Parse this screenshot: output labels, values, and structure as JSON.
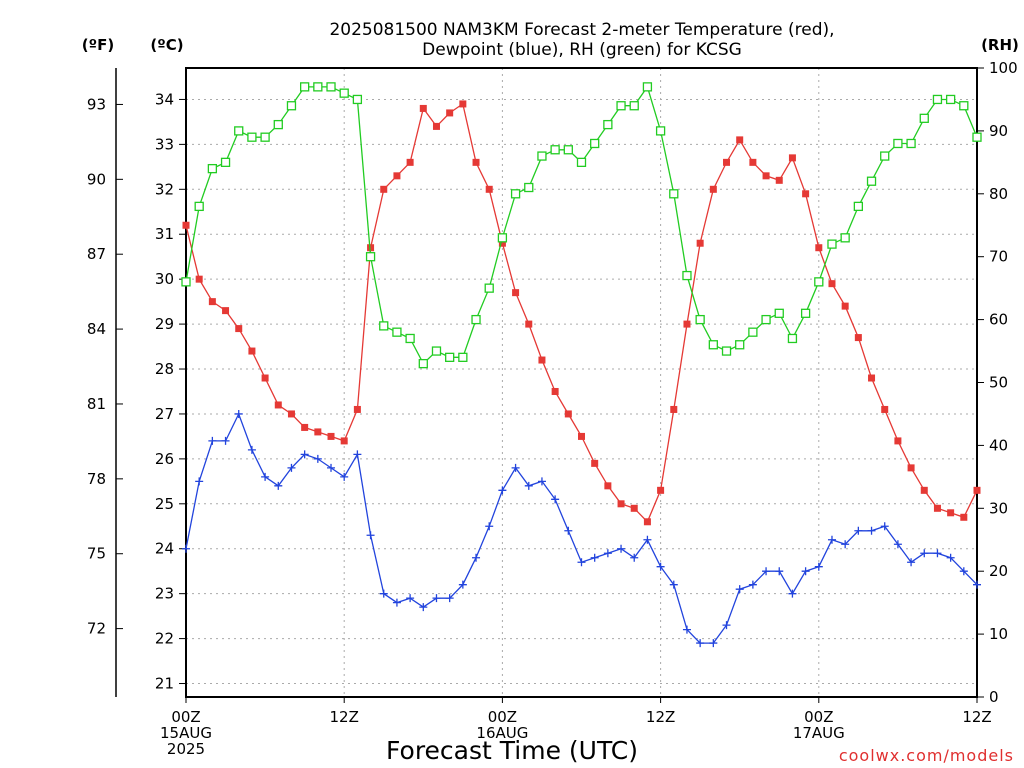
{
  "title_line1": "2025081500 NAM3KM Forecast 2-meter Temperature (red),",
  "title_line2": "Dewpoint (blue), RH (green) for KCSG",
  "units": {
    "f": "(ºF)",
    "c": "(ºC)",
    "rh": "(RH)"
  },
  "credit": "coolwx.com/models",
  "colors": {
    "temperature": "#e53935",
    "dewpoint": "#2244dd",
    "rh": "#22cc22",
    "grid": "#aaaaaa"
  },
  "chart_data": {
    "type": "line",
    "xlabel": "Forecast Time (UTC)",
    "x_unit": "forecast hour from 2025-08-15 00Z",
    "xlim": [
      0,
      60
    ],
    "x_ticks": [
      {
        "hour": 0,
        "lines": [
          "00Z",
          "15AUG",
          "2025"
        ]
      },
      {
        "hour": 12,
        "lines": [
          "12Z"
        ]
      },
      {
        "hour": 24,
        "lines": [
          "00Z",
          "16AUG"
        ]
      },
      {
        "hour": 36,
        "lines": [
          "12Z"
        ]
      },
      {
        "hour": 48,
        "lines": [
          "00Z",
          "17AUG"
        ]
      },
      {
        "hour": 60,
        "lines": [
          "12Z"
        ]
      }
    ],
    "y_celsius": {
      "ylim": [
        20.7,
        34.7
      ],
      "ticks": [
        21,
        22,
        23,
        24,
        25,
        26,
        27,
        28,
        29,
        30,
        31,
        32,
        33,
        34
      ]
    },
    "y_fahrenheit": {
      "ticks": [
        72,
        75,
        78,
        81,
        84,
        87,
        90,
        93
      ]
    },
    "y_rh": {
      "ylim": [
        0,
        100
      ],
      "ticks": [
        0,
        10,
        20,
        30,
        40,
        50,
        60,
        70,
        80,
        90,
        100
      ]
    },
    "x": [
      0,
      1,
      2,
      3,
      4,
      5,
      6,
      7,
      8,
      9,
      10,
      11,
      12,
      13,
      14,
      15,
      16,
      17,
      18,
      19,
      20,
      21,
      22,
      23,
      24,
      25,
      26,
      27,
      28,
      29,
      30,
      31,
      32,
      33,
      34,
      35,
      36,
      37,
      38,
      39,
      40,
      41,
      42,
      43,
      44,
      45,
      46,
      47,
      48,
      49,
      50,
      51,
      52,
      53,
      54,
      55,
      56,
      57,
      58,
      59,
      60
    ],
    "series": [
      {
        "name": "Temperature",
        "color": "#e53935",
        "axis": "celsius",
        "marker": "filled-square",
        "values": [
          31.2,
          30.0,
          29.5,
          29.3,
          28.9,
          28.4,
          27.8,
          27.2,
          27.0,
          26.7,
          26.6,
          26.5,
          26.4,
          27.1,
          30.7,
          32.0,
          32.3,
          32.6,
          33.8,
          33.4,
          33.7,
          33.9,
          32.6,
          32.0,
          30.8,
          29.7,
          29.0,
          28.2,
          27.5,
          27.0,
          26.5,
          25.9,
          25.4,
          25.0,
          24.9,
          24.6,
          25.3,
          27.1,
          29.0,
          30.8,
          32.0,
          32.6,
          33.1,
          32.6,
          32.3,
          32.2,
          32.7,
          31.9,
          30.7,
          29.9,
          29.4,
          28.7,
          27.8,
          27.1,
          26.4,
          25.8,
          25.3,
          24.9,
          24.8,
          24.7,
          25.3
        ]
      },
      {
        "name": "Dewpoint",
        "color": "#2244dd",
        "axis": "celsius",
        "marker": "plus",
        "values": [
          24.0,
          25.5,
          26.4,
          26.4,
          27.0,
          26.2,
          25.6,
          25.4,
          25.8,
          26.1,
          26.0,
          25.8,
          25.6,
          26.1,
          24.3,
          23.0,
          22.8,
          22.9,
          22.7,
          22.9,
          22.9,
          23.2,
          23.8,
          24.5,
          25.3,
          25.8,
          25.4,
          25.5,
          25.1,
          24.4,
          23.7,
          23.8,
          23.9,
          24.0,
          23.8,
          24.2,
          23.6,
          23.2,
          22.2,
          21.9,
          21.9,
          22.3,
          23.1,
          23.2,
          23.5,
          23.5,
          23.0,
          23.5,
          23.6,
          24.2,
          24.1,
          24.4,
          24.4,
          24.5,
          24.1,
          23.7,
          23.9,
          23.9,
          23.8,
          23.5,
          23.2
        ]
      },
      {
        "name": "RH",
        "color": "#22cc22",
        "axis": "rh",
        "marker": "open-square",
        "values": [
          66,
          78,
          84,
          85,
          90,
          89,
          89,
          91,
          94,
          97,
          97,
          97,
          96,
          95,
          70,
          59,
          58,
          57,
          53,
          55,
          54,
          54,
          60,
          65,
          73,
          80,
          81,
          86,
          87,
          87,
          85,
          88,
          91,
          94,
          94,
          97,
          90,
          80,
          67,
          60,
          56,
          55,
          56,
          58,
          60,
          61,
          57,
          61,
          66,
          72,
          73,
          78,
          82,
          86,
          88,
          88,
          92,
          95,
          95,
          94,
          89
        ]
      }
    ]
  }
}
